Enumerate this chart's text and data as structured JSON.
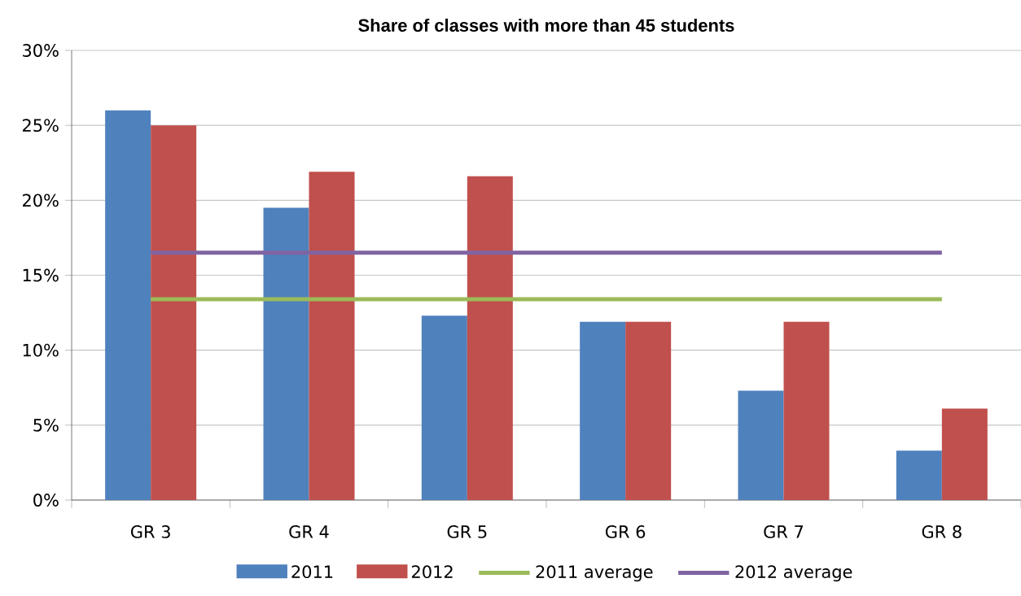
{
  "chart_data": {
    "type": "bar",
    "title": "Share of classes with more than 45 students",
    "categories": [
      "GR 3",
      "GR 4",
      "GR 5",
      "GR 6",
      "GR 7",
      "GR 8"
    ],
    "series": [
      {
        "name": "2011",
        "color": "#4f81bd",
        "values": [
          26.0,
          19.5,
          12.3,
          11.9,
          7.3,
          3.3
        ]
      },
      {
        "name": "2012",
        "color": "#c0504d",
        "values": [
          25.0,
          21.9,
          21.6,
          11.9,
          11.9,
          6.1
        ]
      },
      {
        "name": "2011 average",
        "type": "line",
        "color": "#9bbb59",
        "values": [
          13.4,
          13.4,
          13.4,
          13.4,
          13.4,
          13.4
        ]
      },
      {
        "name": "2012 average",
        "type": "line",
        "color": "#8064a2",
        "values": [
          16.5,
          16.5,
          16.5,
          16.5,
          16.5,
          16.5
        ]
      }
    ],
    "ylim": [
      0,
      30
    ],
    "yticks": [
      {
        "value": 0,
        "label": "0%"
      },
      {
        "value": 5,
        "label": "5%"
      },
      {
        "value": 10,
        "label": "10%"
      },
      {
        "value": 15,
        "label": "15%"
      },
      {
        "value": 20,
        "label": "20%"
      },
      {
        "value": 25,
        "label": "25%"
      },
      {
        "value": 30,
        "label": "30%"
      }
    ],
    "grid": "y",
    "legend": "bottom",
    "marker": "none",
    "line_style": "solid"
  }
}
